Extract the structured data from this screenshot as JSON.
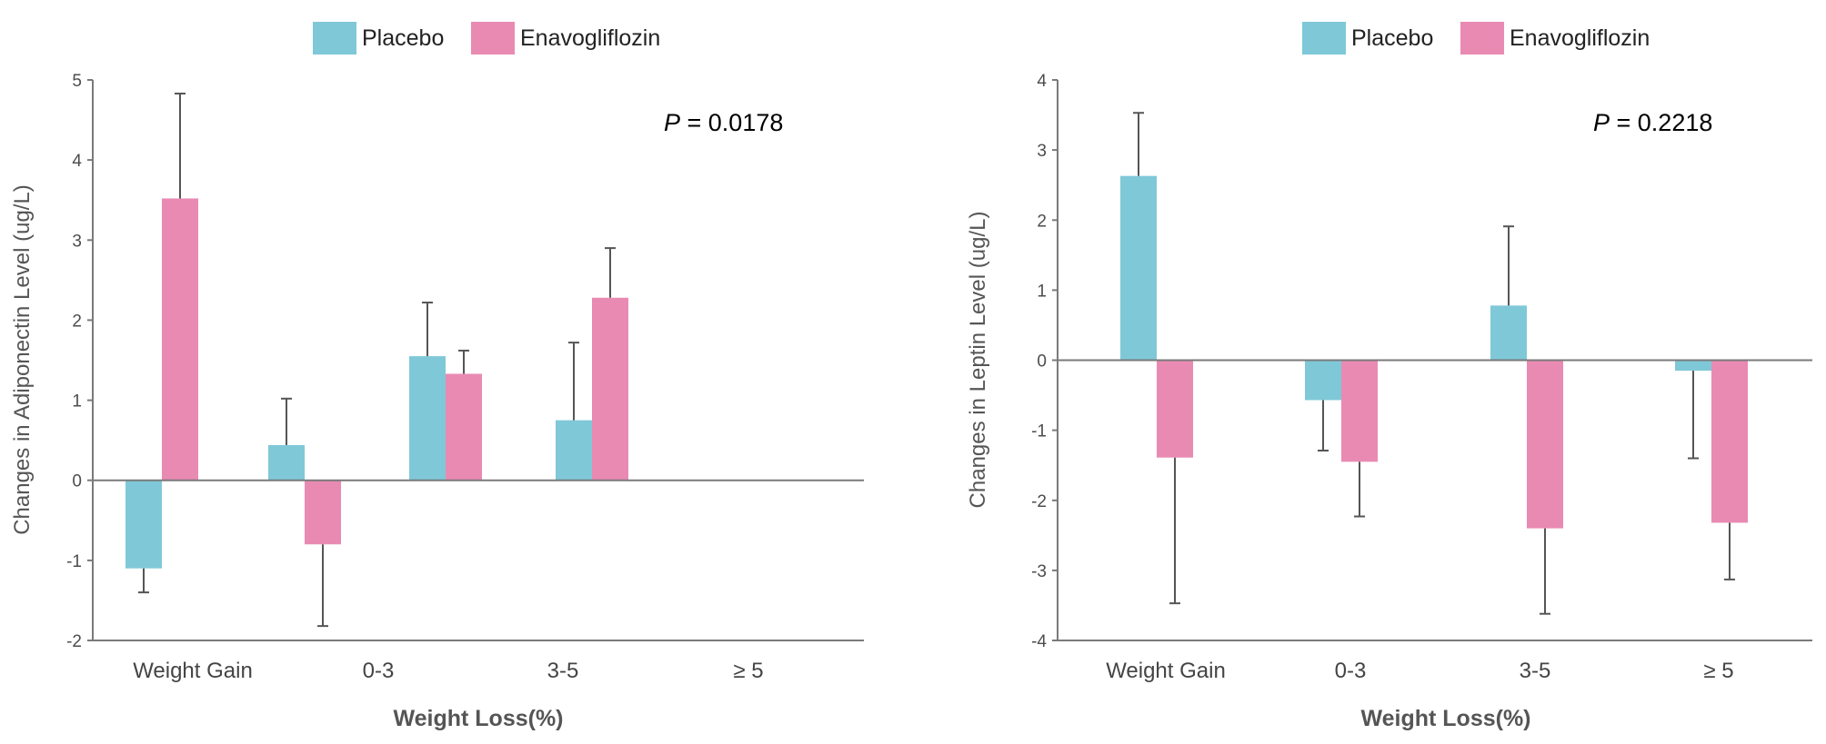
{
  "colors": {
    "placebo": "#7fc8d8",
    "enavogliflozin": "#e98ab3",
    "axis": "#7a7a7a",
    "errorbar": "#555555"
  },
  "chart_data": [
    {
      "type": "bar",
      "categories": [
        "Weight Gain",
        "0-3",
        "3-5",
        "≥ 5"
      ],
      "series": [
        {
          "name": "Placebo",
          "values": [
            -1.1,
            0.44,
            1.55,
            0.75
          ],
          "error_end": [
            -1.4,
            1.02,
            2.22,
            1.72
          ]
        },
        {
          "name": "Enavogliflozin",
          "values": [
            3.52,
            -0.8,
            1.33,
            2.28
          ],
          "error_end": [
            4.83,
            -1.82,
            1.62,
            2.9
          ]
        }
      ],
      "legend": [
        "Placebo",
        "Enavogliflozin"
      ],
      "legend_position": "top",
      "annotation": {
        "italic": "P",
        "rest": " = 0.0178"
      },
      "xlabel": "Weight Loss(%)",
      "ylabel": "Changes in Adiponectin Level (ug/L)",
      "ylim": [
        -2,
        5
      ],
      "yticks": [
        "-2",
        "-1",
        "0",
        "1",
        "2",
        "3",
        "4",
        "5"
      ],
      "grid": false
    },
    {
      "type": "bar",
      "categories": [
        "Weight Gain",
        "0-3",
        "3-5",
        "≥ 5"
      ],
      "series": [
        {
          "name": "Placebo",
          "values": [
            2.63,
            -0.57,
            0.78,
            -0.15
          ],
          "error_end": [
            3.53,
            -1.29,
            1.91,
            -1.4
          ]
        },
        {
          "name": "Enavogliflozin",
          "values": [
            -1.39,
            -1.45,
            -2.4,
            -2.32
          ],
          "error_end": [
            -3.47,
            -2.23,
            -3.62,
            -3.13
          ]
        }
      ],
      "legend": [
        "Placebo",
        "Enavogliflozin"
      ],
      "legend_position": "top",
      "annotation": {
        "italic": "P",
        "rest": " = 0.2218"
      },
      "xlabel": "Weight Loss(%)",
      "ylabel": "Changes in Leptin Level (ug/L)",
      "ylim": [
        -4,
        4
      ],
      "yticks": [
        "-4",
        "-3",
        "-2",
        "-1",
        "0",
        "1",
        "2",
        "3",
        "4"
      ],
      "grid": false
    }
  ]
}
